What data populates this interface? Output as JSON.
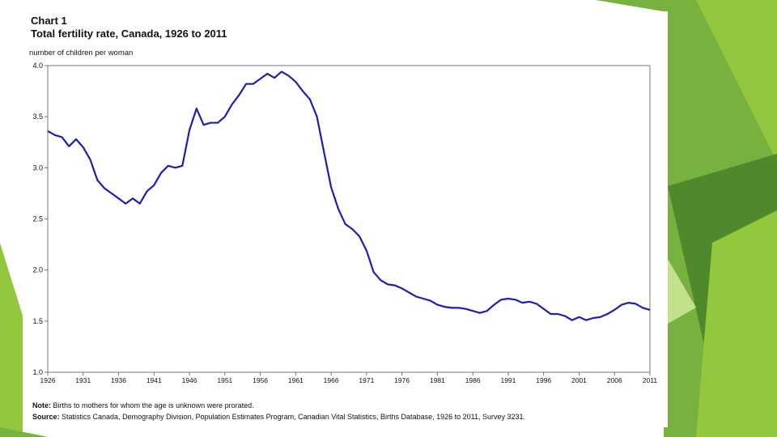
{
  "colors": {
    "line": "#1e1eb4",
    "green_dark": "#4e8a2c",
    "green_mid": "#77b140",
    "green_light": "#93c83e",
    "green_pale": "#c3e08a"
  },
  "chart_data": {
    "type": "line",
    "title_line1": "Chart 1",
    "title_line2": "Total fertility rate, Canada, 1926 to 2011",
    "ylabel": "number of children per woman",
    "xlabel": "",
    "ylim": [
      1.0,
      4.0
    ],
    "xlim": [
      1926,
      2011
    ],
    "grid": false,
    "y_ticks": [
      "1.0",
      "1.5",
      "2.0",
      "2.5",
      "3.0",
      "3.5",
      "4.0"
    ],
    "x_ticks": [
      "1926",
      "1931",
      "1936",
      "1941",
      "1946",
      "1951",
      "1956",
      "1961",
      "1966",
      "1971",
      "1976",
      "1981",
      "1986",
      "1991",
      "1996",
      "2001",
      "2006",
      "2011"
    ],
    "series": [
      {
        "name": "Total fertility rate",
        "x": [
          1926,
          1927,
          1928,
          1929,
          1930,
          1931,
          1932,
          1933,
          1934,
          1935,
          1936,
          1937,
          1938,
          1939,
          1940,
          1941,
          1942,
          1943,
          1944,
          1945,
          1946,
          1947,
          1948,
          1949,
          1950,
          1951,
          1952,
          1953,
          1954,
          1955,
          1956,
          1957,
          1958,
          1959,
          1960,
          1961,
          1962,
          1963,
          1964,
          1965,
          1966,
          1967,
          1968,
          1969,
          1970,
          1971,
          1972,
          1973,
          1974,
          1975,
          1976,
          1977,
          1978,
          1979,
          1980,
          1981,
          1982,
          1983,
          1984,
          1985,
          1986,
          1987,
          1988,
          1989,
          1990,
          1991,
          1992,
          1993,
          1994,
          1995,
          1996,
          1997,
          1998,
          1999,
          2000,
          2001,
          2002,
          2003,
          2004,
          2005,
          2006,
          2007,
          2008,
          2009,
          2010,
          2011
        ],
        "values": [
          3.36,
          3.32,
          3.3,
          3.21,
          3.28,
          3.2,
          3.08,
          2.88,
          2.8,
          2.75,
          2.7,
          2.65,
          2.7,
          2.65,
          2.77,
          2.83,
          2.95,
          3.02,
          3.0,
          3.02,
          3.37,
          3.58,
          3.42,
          3.44,
          3.44,
          3.5,
          3.62,
          3.71,
          3.82,
          3.82,
          3.87,
          3.92,
          3.88,
          3.94,
          3.9,
          3.84,
          3.75,
          3.67,
          3.5,
          3.15,
          2.81,
          2.6,
          2.45,
          2.4,
          2.33,
          2.19,
          1.98,
          1.9,
          1.86,
          1.85,
          1.82,
          1.78,
          1.74,
          1.72,
          1.7,
          1.66,
          1.64,
          1.63,
          1.63,
          1.62,
          1.6,
          1.58,
          1.6,
          1.66,
          1.71,
          1.72,
          1.71,
          1.68,
          1.69,
          1.67,
          1.62,
          1.57,
          1.57,
          1.55,
          1.51,
          1.54,
          1.51,
          1.53,
          1.54,
          1.57,
          1.61,
          1.66,
          1.68,
          1.67,
          1.63,
          1.61
        ]
      }
    ],
    "note_label": "Note:",
    "note_text": "Births to mothers for whom the age is unknown were prorated.",
    "source_label": "Source:",
    "source_text": "Statistics Canada, Demography Division, Population Estimates Program, Canadian Vital Statistics, Births Database, 1926 to 2011, Survey 3231."
  }
}
